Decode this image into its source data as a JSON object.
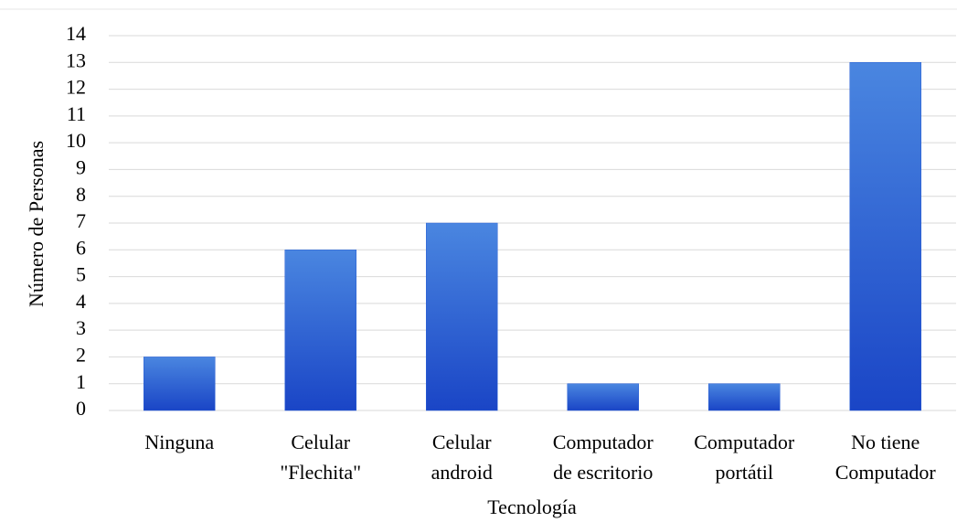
{
  "chart_data": {
    "type": "bar",
    "x_label": "Tecnología",
    "y_label": "Número de Personas",
    "categories": [
      [
        "Ninguna"
      ],
      [
        "Celular",
        "\"Flechita\""
      ],
      [
        "Celular",
        "android"
      ],
      [
        "Computador",
        "de escritorio"
      ],
      [
        "Computador",
        "portátil"
      ],
      [
        "No tiene",
        "Computador"
      ]
    ],
    "values": [
      2,
      6,
      7,
      1,
      1,
      13
    ],
    "color": "#2a5fd6",
    "ylim": [
      0,
      14
    ],
    "yticks": [
      0,
      1,
      2,
      3,
      4,
      5,
      6,
      7,
      8,
      9,
      10,
      11,
      12,
      13,
      14
    ],
    "grid": true
  }
}
